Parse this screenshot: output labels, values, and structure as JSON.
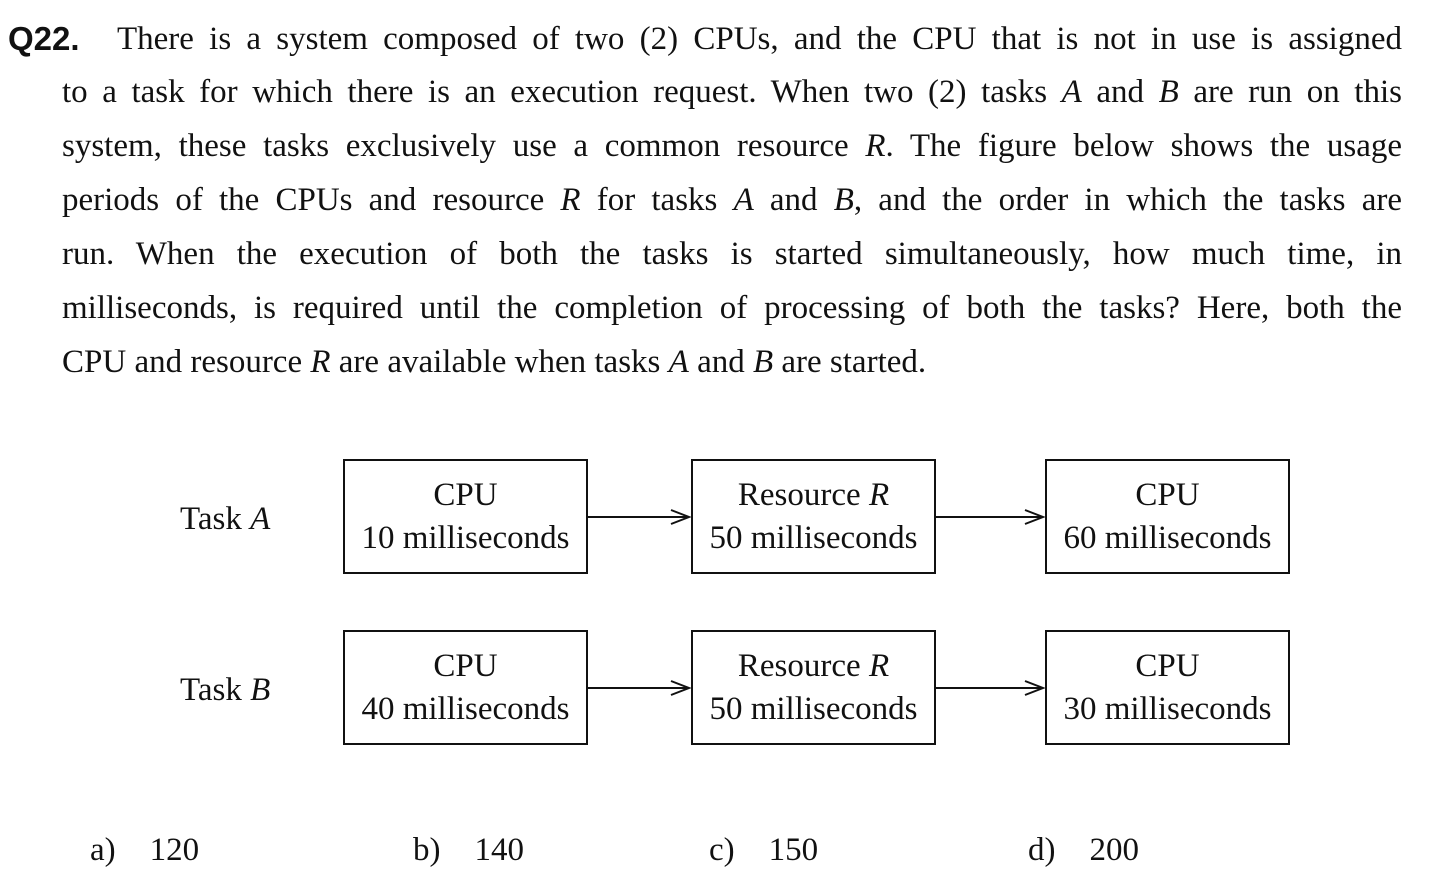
{
  "question": {
    "number": "Q22.",
    "lines": [
      "There is a system composed of two (2) CPUs, and the CPU that is not in use is assigned",
      "to a task for which there is an execution request. When two (2) tasks ",
      "system, these tasks exclusively use a common resource ",
      "periods of the CPUs and resource ",
      "run. When the execution of both the tasks is started simultaneously, how much time, in",
      "milliseconds, is required until the completion of processing of both the tasks? Here, both the",
      "CPU and resource "
    ],
    "fragments": {
      "line2_a": "A",
      "line2_and": " and ",
      "line2_b": "B",
      "line2_tail": " are run on this",
      "line3_r": "R",
      "line3_tail": ". The figure below shows the usage",
      "line4_r": "R",
      "line4_mid1": " for tasks ",
      "line4_a": "A",
      "line4_and": " and ",
      "line4_b": "B",
      "line4_tail": ", and the order in which the tasks are",
      "line7_r": "R",
      "line7_mid": " are available when tasks ",
      "line7_a": "A",
      "line7_and": " and ",
      "line7_b": "B",
      "line7_tail": " are started."
    }
  },
  "diagram": {
    "tasks": [
      {
        "label_prefix": "Task ",
        "label_var": "A",
        "steps": [
          {
            "line1": "CPU",
            "line1_var": "",
            "line2": "10 milliseconds"
          },
          {
            "line1": "Resource ",
            "line1_var": "R",
            "line2": "50 milliseconds"
          },
          {
            "line1": "CPU",
            "line1_var": "",
            "line2": "60 milliseconds"
          }
        ]
      },
      {
        "label_prefix": "Task ",
        "label_var": "B",
        "steps": [
          {
            "line1": "CPU",
            "line1_var": "",
            "line2": "40 milliseconds"
          },
          {
            "line1": "Resource ",
            "line1_var": "R",
            "line2": "50 milliseconds"
          },
          {
            "line1": "CPU",
            "line1_var": "",
            "line2": "30 milliseconds"
          }
        ]
      }
    ]
  },
  "options": [
    {
      "letter": "a)",
      "value": "120"
    },
    {
      "letter": "b)",
      "value": "140"
    },
    {
      "letter": "c)",
      "value": "150"
    },
    {
      "letter": "d)",
      "value": "200"
    }
  ]
}
